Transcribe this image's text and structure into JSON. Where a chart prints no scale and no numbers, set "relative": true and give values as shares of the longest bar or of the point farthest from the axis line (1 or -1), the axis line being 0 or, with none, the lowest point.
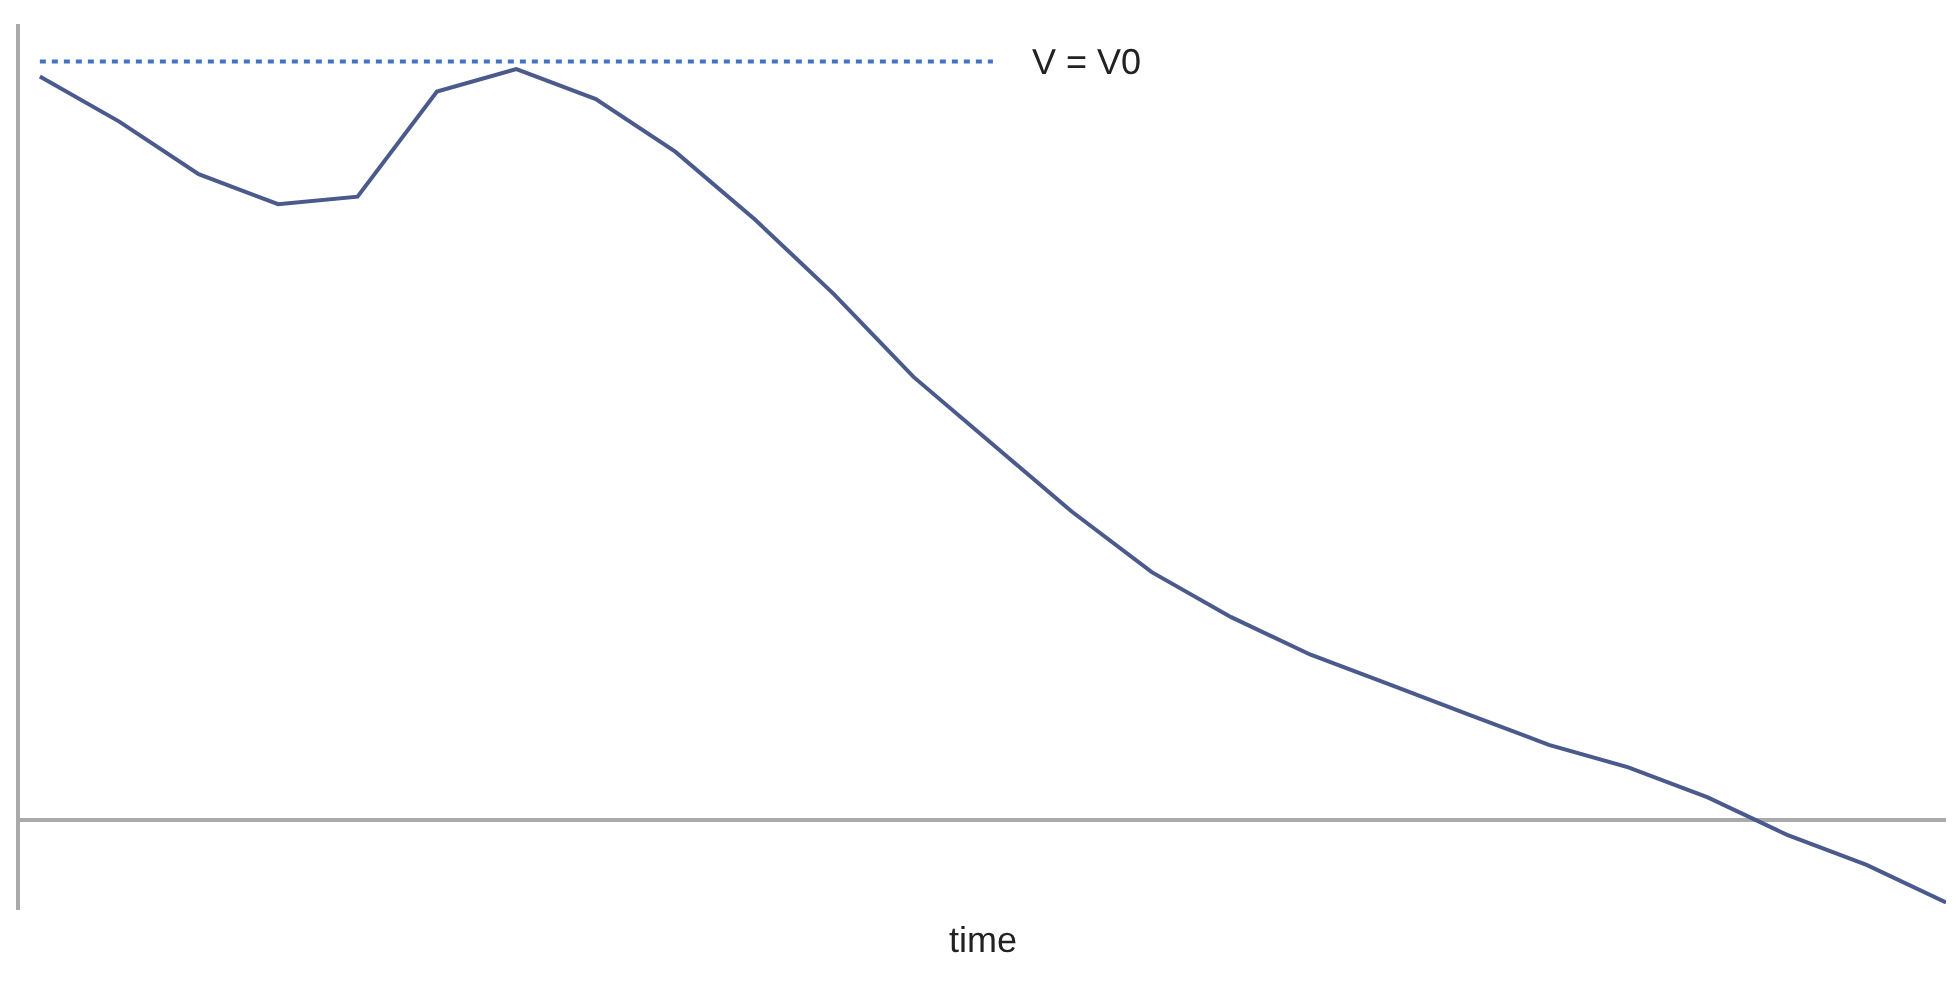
{
  "chart_data": {
    "type": "line",
    "xlabel": "time",
    "relative": true,
    "categories": [
      null,
      null,
      null,
      null,
      null,
      null,
      null,
      null,
      null,
      null,
      null,
      null,
      null,
      null,
      null,
      null,
      null,
      null,
      null,
      null,
      null,
      null,
      null,
      null,
      null
    ],
    "series": [
      {
        "color": "#4a5a8c",
        "values": [
          0.99,
          0.93,
          0.86,
          0.82,
          0.83,
          0.97,
          1,
          0.96,
          0.89,
          0.8,
          0.7,
          0.59,
          0.5,
          0.41,
          0.33,
          0.27,
          0.22,
          0.18,
          0.14,
          0.1,
          0.07,
          0.03,
          -0.02,
          -0.06,
          -0.11
        ]
      }
    ],
    "ref_lines": [
      {
        "axis": "y",
        "value": 1.01,
        "label": "V = V0",
        "color": "#4472c4",
        "line_style": "dotted"
      }
    ],
    "marker": "none",
    "line_style": "solid"
  }
}
